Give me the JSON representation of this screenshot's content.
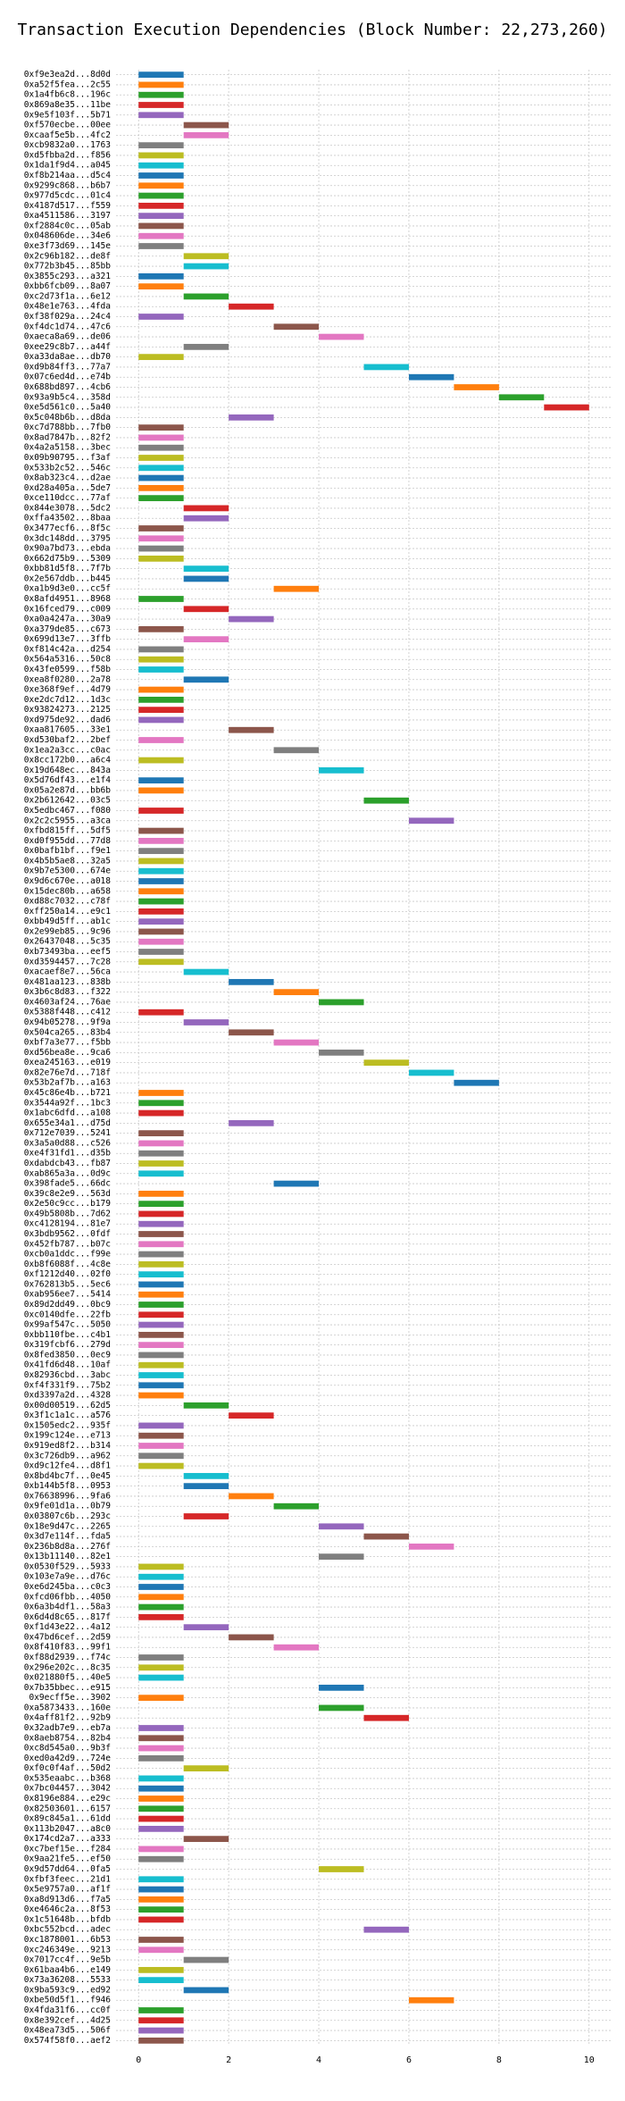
{
  "chart_data": {
    "type": "gantt",
    "title": "Transaction Execution Dependencies (Block Number: 22,273,260)",
    "categories": [
      "0xf9e3ea2d...8d0d",
      "0xa52f5fea...2c55",
      "0x1a4fb6c8...196c",
      "0x869a8e35...11be",
      "0x9e5f103f...5b71",
      "0xf570ecbe...00ee",
      "0xcaaf5e5b...4fc2",
      "0xcb9832a0...1763",
      "0xd5fbba2d...f856",
      "0x1da1f9d4...a045",
      "0xf8b214aa...d5c4",
      "0x9299c868...b6b7",
      "0x977d5cdc...01c4",
      "0x4187d517...f559",
      "0xa4511586...3197",
      "0xf2884c0c...05ab",
      "0x048606de...34e6",
      "0xe3f73d69...145e",
      "0x2c96b182...de8f",
      "0x772b3b45...85bb",
      "0x3855c293...a321",
      "0xbb6fcb09...8a07",
      "0xc2d73f1a...6e12",
      "0x48e1e763...4fda",
      "0xf38f029a...24c4",
      "0xf4dc1d74...47c6",
      "0xaeca8a69...de06",
      "0xee29c8b7...a44f",
      "0xa33da8ae...db70",
      "0xd9b84ff3...77a7",
      "0x07c6ed4d...e74b",
      "0x688bd897...4cb6",
      "0x93a9b5c4...358d",
      "0xe5d561c0...5a40",
      "0x5c048b6b...d8da",
      "0xc7d788bb...7fb0",
      "0x8ad7847b...82f2",
      "0x4a2a5158...3bec",
      "0x09b90795...f3af",
      "0x533b2c52...546c",
      "0x8ab323c4...d2ae",
      "0xd28a405a...5de7",
      "0xce110dcc...77af",
      "0x844e3078...5dc2",
      "0xffa43502...8baa",
      "0x3477ecf6...8f5c",
      "0x3dc148dd...3795",
      "0x90a7bd73...ebda",
      "0x662d75b9...5309",
      "0xbb81d5f8...7f7b",
      "0x2e567ddb...b445",
      "0xa1b9d3e0...cc5f",
      "0x8afd4951...8968",
      "0x16fced79...c009",
      "0xa0a4247a...30a9",
      "0xa379de85...c673",
      "0x699d13e7...3ffb",
      "0xf814c42a...d254",
      "0x564a5316...50c8",
      "0x43fe0599...f58b",
      "0xea8f0280...2a78",
      "0xe368f9ef...4d79",
      "0xe2dc7d12...1d3c",
      "0x93824273...2125",
      "0xd975de92...dad6",
      "0xaa817605...33e1",
      "0xd530baf2...2bef",
      "0x1ea2a3cc...c0ac",
      "0x8cc172b0...a6c4",
      "0x19d648ec...843a",
      "0x5d76df43...e1f4",
      "0x05a2e87d...bb6b",
      "0x2b612642...03c5",
      "0x5edbc467...f080",
      "0x2c2c5955...a3ca",
      "0xfbd815ff...5df5",
      "0xd0f955dd...77d8",
      "0x0bafb1bf...f9e1",
      "0x4b5b5ae8...32a5",
      "0x9b7e5300...674e",
      "0x9d6c670e...a018",
      "0x15dec80b...a658",
      "0xd88c7032...c78f",
      "0xff250a14...e9c1",
      "0xbb49d5ff...ab1c",
      "0x2e99eb85...9c96",
      "0x26437048...5c35",
      "0xb73493ba...eef5",
      "0xd3594457...7c28",
      "0xacaef8e7...56ca",
      "0x481aa123...838b",
      "0x3b6c8d83...f322",
      "0x4603af24...76ae",
      "0x5388f448...c412",
      "0x94b05278...9f9a",
      "0x504ca265...83b4",
      "0xbf7a3e77...f5bb",
      "0xd56bea8e...9ca6",
      "0xea245163...e019",
      "0x82e76e7d...718f",
      "0x53b2af7b...a163",
      "0x45c86e4b...b721",
      "0x3544a92f...1bc3",
      "0x1abc6dfd...a108",
      "0x655e34a1...d75d",
      "0x712e7039...5241",
      "0x3a5a0d88...c526",
      "0xe4f31fd1...d35b",
      "0xdabdcb43...fb87",
      "0xab865a3a...0d9c",
      "0x398fade5...66dc",
      "0x39c8e2e9...563d",
      "0x2e50c9cc...b179",
      "0x49b5808b...7d62",
      "0xc4128194...81e7",
      "0x3bdb9562...0fdf",
      "0x452fb787...b07c",
      "0xcb0a1ddc...f99e",
      "0xb8f6088f...4c8e",
      "0xf1212d40...02f0",
      "0x762813b5...5ec6",
      "0xab956ee7...5414",
      "0x89d2dd49...0bc9",
      "0xc0140dfe...22fb",
      "0x99af547c...5050",
      "0xbb110fbe...c4b1",
      "0x319fcbf6...279d",
      "0x8fed3850...0ec9",
      "0x41fd6d48...10af",
      "0x82936cbd...3abc",
      "0xf4f331f9...75b2",
      "0xd3397a2d...4328",
      "0x00d00519...62d5",
      "0x3f1c1a1c...a576",
      "0x1505edc2...935f",
      "0x199c124e...e713",
      "0x919ed8f2...b314",
      "0x3c726db9...a962",
      "0xd9c12fe4...d8f1",
      "0x8bd4bc7f...0e45",
      "0xb144b5f8...0953",
      "0x76638996...9fa6",
      "0x9fe01d1a...0b79",
      "0x03807c6b...293c",
      "0x18e9d47c...2265",
      "0x3d7e114f...fda5",
      "0x236b8d8a...276f",
      "0x13b11140...82e1",
      "0x0530f529...5933",
      "0x103e7a9e...d76c",
      "0xe6d245ba...c0c3",
      "0xfcd06fbb...4050",
      "0x6a3b4df1...58a3",
      "0x6d4d8c65...817f",
      "0xf1d43e22...4a12",
      "0x47bd6cef...2d59",
      "0x8f410f83...99f1",
      "0xf88d2939...f74c",
      "0x296e202c...8c35",
      "0x021880f5...40e5",
      "0x7b35bbec...e915",
      "0x9ecff5e...3902",
      "0xa5873433...160e",
      "0x4aff81f2...92b9",
      "0x32adb7e9...eb7a",
      "0x8aeb8754...82b4",
      "0xc8d545a0...9b3f",
      "0xed0a42d9...724e",
      "0xf0c0f4af...50d2",
      "0x535eaabc...b368",
      "0x7bc04457...3042",
      "0x8196e884...e29c",
      "0x82503601...6157",
      "0x89c845a1...61dd",
      "0x113b2047...a8c0",
      "0x174cd2a7...a333",
      "0xc7bef15e...f284",
      "0x9aa21fe5...ef50",
      "0x9d57dd64...0fa5",
      "0xfbf3feec...21d1",
      "0x5e9757a0...af1f",
      "0xa8d913d6...f7a5",
      "0xe4646c2a...8f53",
      "0x1c51648b...bfdb",
      "0xbc552bcd...adec",
      "0xc1878001...6b53",
      "0xc246349e...9213",
      "0x7017cc4f...9e5b",
      "0x61baa4b6...e149",
      "0x73a36208...5533",
      "0x9ba593c9...ed92",
      "0xbe50d5f1...f946",
      "0x4fda31f6...cc0f",
      "0x8e392cef...4d25",
      "0x48ea73d5...506f",
      "0x574f58f0...aef2"
    ],
    "starts": [
      0,
      0,
      0,
      0,
      0,
      1,
      1,
      0,
      0,
      0,
      0,
      0,
      0,
      0,
      0,
      0,
      0,
      0,
      1,
      1,
      0,
      0,
      1,
      2,
      0,
      3,
      4,
      1,
      0,
      5,
      6,
      7,
      8,
      9,
      2,
      0,
      0,
      0,
      0,
      0,
      0,
      0,
      0,
      1,
      1,
      0,
      0,
      0,
      0,
      1,
      1,
      3,
      0,
      1,
      2,
      0,
      1,
      0,
      0,
      0,
      1,
      0,
      0,
      0,
      0,
      2,
      0,
      3,
      0,
      4,
      0,
      0,
      5,
      0,
      6,
      0,
      0,
      0,
      0,
      0,
      0,
      0,
      0,
      0,
      0,
      0,
      0,
      0,
      0,
      1,
      2,
      3,
      4,
      0,
      1,
      2,
      3,
      4,
      5,
      6,
      7,
      0,
      0,
      0,
      2,
      0,
      0,
      0,
      0,
      0,
      3,
      0,
      0,
      0,
      0,
      0,
      0,
      0,
      0,
      0,
      0,
      0,
      0,
      0,
      0,
      0,
      0,
      0,
      0,
      0,
      0,
      0,
      1,
      2,
      0,
      0,
      0,
      0,
      0,
      1,
      1,
      2,
      3,
      1,
      4,
      5,
      6,
      4,
      0,
      0,
      0,
      0,
      0,
      0,
      1,
      2,
      3,
      0,
      0,
      0,
      4,
      0,
      4,
      5,
      0,
      0,
      0,
      0,
      1,
      0,
      0,
      0,
      0,
      0,
      0,
      1,
      0,
      0,
      4,
      0,
      0,
      0,
      0,
      0,
      5,
      0,
      0,
      1,
      0,
      0,
      1,
      6,
      0,
      0,
      0,
      0
    ],
    "ends": [
      1,
      1,
      1,
      1,
      1,
      2,
      2,
      1,
      1,
      1,
      1,
      1,
      1,
      1,
      1,
      1,
      1,
      1,
      2,
      2,
      1,
      1,
      2,
      3,
      1,
      4,
      5,
      2,
      1,
      6,
      7,
      8,
      9,
      10,
      3,
      1,
      1,
      1,
      1,
      1,
      1,
      1,
      1,
      2,
      2,
      1,
      1,
      1,
      1,
      2,
      2,
      4,
      1,
      2,
      3,
      1,
      2,
      1,
      1,
      1,
      2,
      1,
      1,
      1,
      1,
      3,
      1,
      4,
      1,
      5,
      1,
      1,
      6,
      1,
      7,
      1,
      1,
      1,
      1,
      1,
      1,
      1,
      1,
      1,
      1,
      1,
      1,
      1,
      1,
      2,
      3,
      4,
      5,
      1,
      2,
      3,
      4,
      5,
      6,
      7,
      8,
      1,
      1,
      1,
      3,
      1,
      1,
      1,
      1,
      1,
      4,
      1,
      1,
      1,
      1,
      1,
      1,
      1,
      1,
      1,
      1,
      1,
      1,
      1,
      1,
      1,
      1,
      1,
      1,
      1,
      1,
      1,
      2,
      3,
      1,
      1,
      1,
      1,
      1,
      2,
      2,
      3,
      4,
      2,
      5,
      6,
      7,
      5,
      1,
      1,
      1,
      1,
      1,
      1,
      2,
      3,
      4,
      1,
      1,
      1,
      5,
      1,
      5,
      6,
      1,
      1,
      1,
      1,
      2,
      1,
      1,
      1,
      1,
      1,
      1,
      2,
      1,
      1,
      5,
      1,
      1,
      1,
      1,
      1,
      6,
      1,
      1,
      2,
      1,
      1,
      2,
      7,
      1,
      1,
      1,
      1
    ],
    "colors": [
      "#1f77b4",
      "#ff7f0e",
      "#2ca02c",
      "#d62728",
      "#9467bd",
      "#8c564b",
      "#e377c2",
      "#7f7f7f",
      "#bcbd22",
      "#17becf"
    ],
    "xlim": [
      -0.5,
      10.5
    ],
    "xticks": [
      0,
      2,
      4,
      6,
      8,
      10
    ],
    "grid": true
  }
}
